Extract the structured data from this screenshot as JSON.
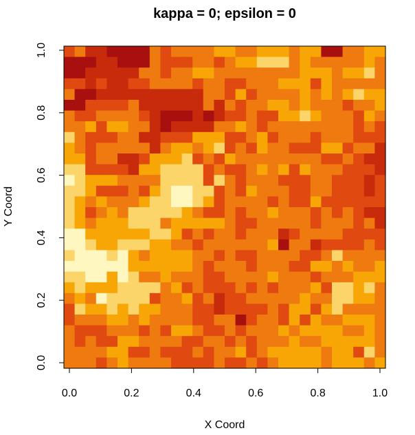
{
  "chart_data": {
    "type": "heatmap",
    "title": "kappa = 0; epsilon = 0",
    "xlabel": "X Coord",
    "ylabel": "Y Coord",
    "xlim": [
      0.0,
      1.0
    ],
    "ylim": [
      0.0,
      1.0
    ],
    "x_ticks": [
      "0.0",
      "0.2",
      "0.4",
      "0.6",
      "0.8",
      "1.0"
    ],
    "y_ticks": [
      "0.0",
      "0.2",
      "0.4",
      "0.6",
      "0.8",
      "1.0"
    ],
    "grid": false,
    "legend": "none",
    "colormap": "heat.colors",
    "palette": [
      "#7a0a2a",
      "#a80f0f",
      "#c82a0c",
      "#e04a10",
      "#ee7a10",
      "#f7a606",
      "#fbd56a",
      "#fff6c0"
    ],
    "nx": 30,
    "ny": 30,
    "z_rows_top_to_bottom": [
      "342211114344445544555455114455",
      "111221114333443455666454444454",
      "112222244344554444444455545564",
      "332322334444344334445553544444",
      "411222222222244353444454545655",
      "113333422222242434455454443445",
      "433444432111212334335565444354",
      "445355442122224454344444444343",
      "643334422333555334534443444333",
      "543444442455456343544333553442",
      "553442235556343544444444334322",
      "663333255666634334545354443332",
      "765554444666636434443334433323",
      "665333435677663435444334433323",
      "654544456677653444434335333333",
      "653454666665433434454443434322",
      "654555666455555433444443444342",
      "775555556653434434442344443333",
      "776556665544344444451442333343",
      "677767545555443433444433464444",
      "777777555555434443444335545445",
      "667757644544433444454443444555",
      "565556666453433343434445366564",
      "454766663445342334444454466554",
      "365565655444332333343553564444",
      "344455454444334413443535445554",
      "433344434355433434445455554454",
      "434335544443344343444544555554",
      "444455334333434453455555455364",
      "444345444433334334345555455545"
    ]
  }
}
